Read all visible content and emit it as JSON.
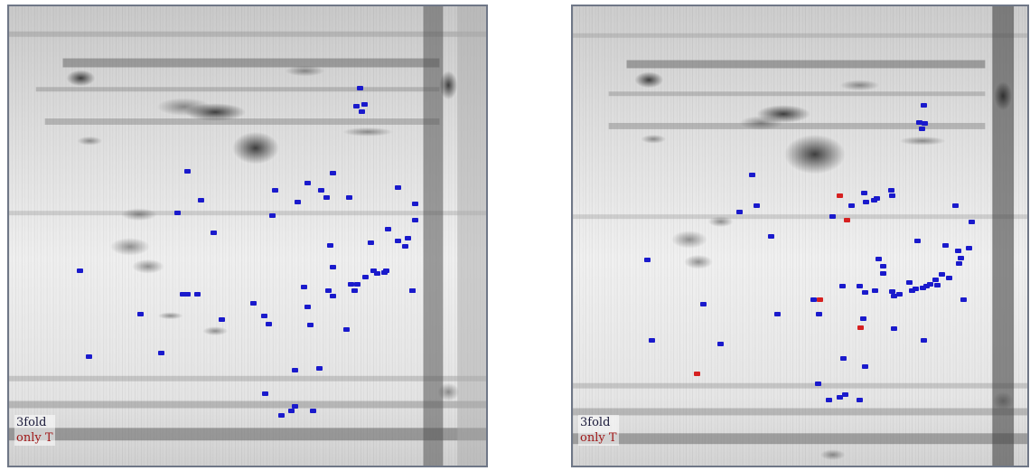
{
  "colors": {
    "three_fold": "#1a1acc",
    "only_t": "#d62020",
    "frame": "#6f7787",
    "legend_three_fold_text": "#1a1a3a",
    "legend_only_t_text": "#a01818"
  },
  "gels": [
    {
      "id": "left",
      "legend": {
        "three_fold": "3fold",
        "only_t": "only T"
      },
      "spots_3fold_count": 60,
      "spots_only_t_count": 0
    },
    {
      "id": "right",
      "legend": {
        "three_fold": "3fold",
        "only_t": "only T"
      },
      "spots_3fold_count": 62,
      "spots_only_t_count": 6
    }
  ]
}
